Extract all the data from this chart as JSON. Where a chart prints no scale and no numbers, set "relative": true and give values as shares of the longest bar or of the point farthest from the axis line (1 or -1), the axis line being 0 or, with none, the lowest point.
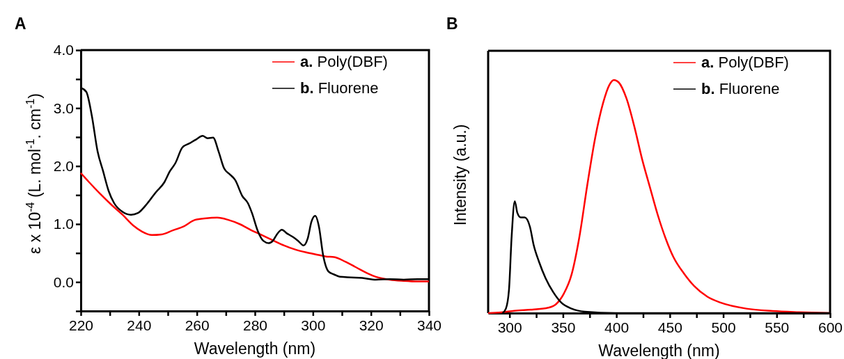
{
  "chart_data": [
    {
      "type": "line",
      "title": "A",
      "xlabel": "Wavelength (nm)",
      "ylabel": "ε x 10$^{-4}$ (L. mol$^{-1}$. cm$^{-1}$)",
      "xlim": [
        220,
        340
      ],
      "xticks": [
        220,
        {
          "value": 230,
          "label": null
        },
        240,
        {
          "value": 250,
          "label": null
        },
        260,
        {
          "value": 270,
          "label": null
        },
        280,
        {
          "value": 290,
          "label": null
        },
        300,
        {
          "value": 310,
          "label": null
        },
        320,
        {
          "value": 330,
          "label": null
        },
        340
      ],
      "ylim": [
        -0.5,
        4.0
      ],
      "yticks": [
        {
          "value": -0.5,
          "label": null
        },
        {
          "value": 0,
          "label": "0.0"
        },
        {
          "value": 0.5,
          "label": null
        },
        {
          "value": 1,
          "label": "1.0"
        },
        {
          "value": 1.5,
          "label": null
        },
        {
          "value": 2,
          "label": "2.0"
        },
        {
          "value": 2.5,
          "label": null
        },
        {
          "value": 3,
          "label": "3.0"
        },
        {
          "value": 3.5,
          "label": null
        },
        {
          "value": 4,
          "label": "4.0"
        }
      ],
      "legend": "top right",
      "grid": false,
      "marker": "none",
      "line_style": "solid",
      "series": [
        {
          "name": "a. Poly(DBF)",
          "color": "#ff0000",
          "x": [
            220,
            222.9,
            226.7,
            230.6,
            234.4,
            238.2,
            241.1,
            244.5,
            247.8,
            251.7,
            255.5,
            259.3,
            263.2,
            267,
            270.9,
            274.7,
            278.5,
            282.4,
            286.2,
            290.1,
            293.9,
            297.7,
            301.6,
            304.5,
            307.3,
            311.2,
            315,
            318.8,
            321.7,
            326.5,
            331.3,
            336.1,
            340
          ],
          "values": [
            1.88,
            1.72,
            1.52,
            1.33,
            1.16,
            0.97,
            0.87,
            0.81,
            0.82,
            0.89,
            0.96,
            1.07,
            1.1,
            1.11,
            1.07,
            1.0,
            0.9,
            0.81,
            0.72,
            0.63,
            0.56,
            0.51,
            0.47,
            0.44,
            0.43,
            0.35,
            0.25,
            0.15,
            0.09,
            0.04,
            0.02,
            0.01,
            0.01
          ]
        },
        {
          "name": "b. Fluorene",
          "color": "#000000",
          "x": [
            220,
            221.9,
            223.8,
            225.8,
            227.7,
            229.6,
            231.5,
            234.4,
            237.3,
            239.7,
            243,
            245.9,
            248.8,
            250.7,
            252.6,
            255,
            257.4,
            259.8,
            262,
            263.7,
            265.6,
            267.5,
            269.4,
            271.3,
            273.2,
            275.7,
            277.6,
            279,
            281,
            282.9,
            284.8,
            286.2,
            287.7,
            289.3,
            291,
            293,
            294.9,
            296.8,
            298.2,
            299.5,
            300.8,
            302.1,
            303.5,
            305.4,
            307.3,
            309.3,
            313.1,
            317,
            321.7,
            326.5,
            331.3,
            336.1,
            340
          ],
          "values": [
            3.35,
            3.28,
            2.87,
            2.25,
            1.91,
            1.57,
            1.36,
            1.21,
            1.16,
            1.19,
            1.36,
            1.55,
            1.72,
            1.91,
            2.05,
            2.32,
            2.39,
            2.46,
            2.52,
            2.48,
            2.49,
            2.25,
            1.96,
            1.86,
            1.76,
            1.48,
            1.36,
            1.19,
            0.88,
            0.71,
            0.67,
            0.71,
            0.83,
            0.9,
            0.84,
            0.78,
            0.71,
            0.63,
            0.75,
            1.04,
            1.14,
            0.95,
            0.47,
            0.18,
            0.13,
            0.09,
            0.08,
            0.07,
            0.04,
            0.05,
            0.04,
            0.05,
            0.05
          ]
        }
      ]
    },
    {
      "type": "line",
      "title": "B",
      "xlabel": "Wavelength (nm)",
      "ylabel": "Intensity (a.u.)",
      "relative": true,
      "xlim": [
        280,
        600
      ],
      "xticks": [
        300,
        {
          "value": 325,
          "label": null
        },
        350,
        {
          "value": 375,
          "label": null
        },
        400,
        {
          "value": 425,
          "label": null
        },
        450,
        {
          "value": 475,
          "label": null
        },
        500,
        {
          "value": 525,
          "label": null
        },
        550,
        {
          "value": 575,
          "label": null
        },
        600
      ],
      "legend": "top right",
      "grid": false,
      "marker": "none",
      "line_style": "solid",
      "series": [
        {
          "name": "a. Poly(DBF)",
          "color": "#ff0000",
          "x": [
            280,
            292.2,
            304.4,
            321.5,
            336.2,
            343.5,
            350.8,
            358.1,
            365.5,
            372.8,
            380.1,
            387.5,
            393.6,
            397.7,
            402.1,
            409.5,
            416.8,
            424.1,
            431.4,
            438.8,
            446.1,
            453.4,
            463.2,
            473,
            485.2,
            497.4,
            521.8,
            546.3,
            570.7,
            600
          ],
          "values": [
            0,
            0.003,
            0.01,
            0.015,
            0.023,
            0.038,
            0.083,
            0.166,
            0.33,
            0.55,
            0.75,
            0.9,
            0.98,
            1,
            0.99,
            0.92,
            0.8,
            0.66,
            0.54,
            0.42,
            0.32,
            0.24,
            0.17,
            0.115,
            0.07,
            0.045,
            0.019,
            0.009,
            0.004,
            0
          ]
        },
        {
          "name": "b. Fluorene",
          "color": "#000000",
          "x": [
            293.4,
            296.6,
            299.5,
            302,
            304.9,
            307.3,
            310.5,
            314.2,
            319.1,
            322.7,
            327.6,
            333.7,
            341,
            348.4,
            358.1,
            370.4,
            399.7,
            485,
            600
          ],
          "values": [
            0,
            0.019,
            0.1,
            0.33,
            0.48,
            0.43,
            0.41,
            0.41,
            0.37,
            0.29,
            0.22,
            0.15,
            0.089,
            0.045,
            0.019,
            0.006,
            0,
            0,
            0
          ]
        }
      ]
    }
  ]
}
